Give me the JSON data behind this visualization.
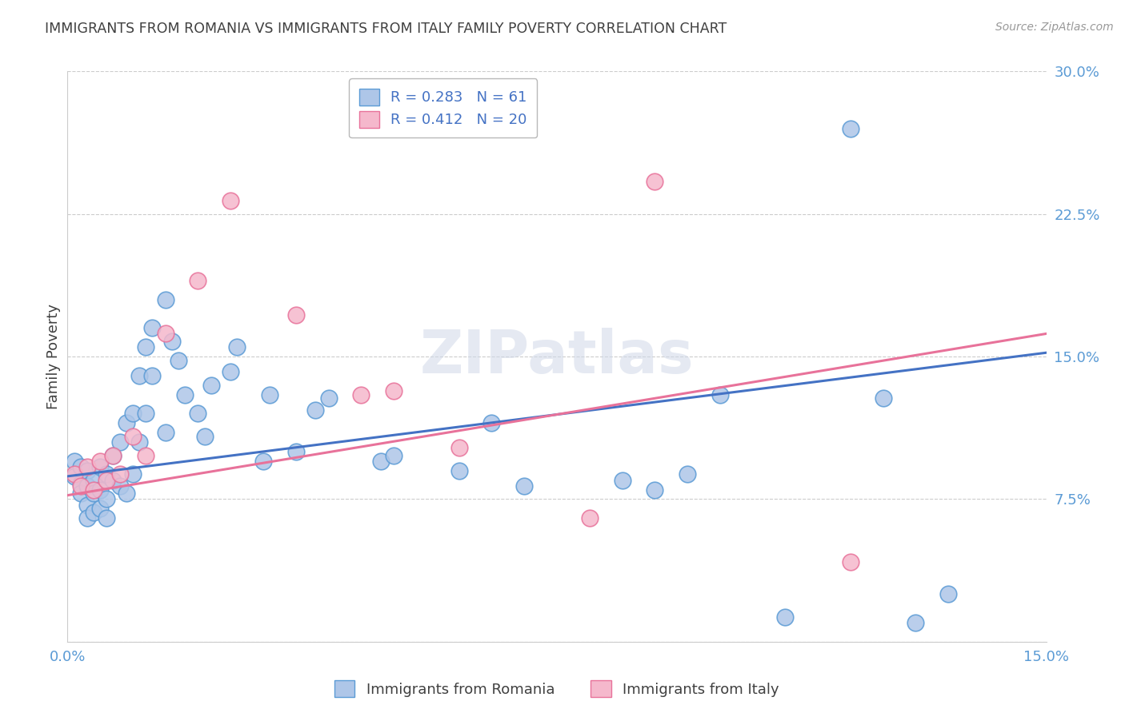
{
  "title": "IMMIGRANTS FROM ROMANIA VS IMMIGRANTS FROM ITALY FAMILY POVERTY CORRELATION CHART",
  "source": "Source: ZipAtlas.com",
  "ylabel": "Family Poverty",
  "xlim": [
    0.0,
    0.15
  ],
  "ylim": [
    0.0,
    0.3
  ],
  "xticks": [
    0.0,
    0.05,
    0.1,
    0.15
  ],
  "xtick_labels": [
    "0.0%",
    "",
    "",
    "15.0%"
  ],
  "yticks": [
    0.0,
    0.075,
    0.15,
    0.225,
    0.3
  ],
  "ytick_labels": [
    "",
    "7.5%",
    "15.0%",
    "22.5%",
    "30.0%"
  ],
  "romania_color": "#aec6e8",
  "romania_edge": "#5b9bd5",
  "italy_color": "#f5b8cc",
  "italy_edge": "#e8729a",
  "romania_line_color": "#4472c4",
  "italy_line_color": "#e8729a",
  "romania_R": 0.283,
  "romania_N": 61,
  "italy_R": 0.412,
  "italy_N": 20,
  "watermark": "ZIPatlas",
  "legend_romania_label": "Immigrants from Romania",
  "legend_italy_label": "Immigrants from Italy",
  "romania_scatter_x": [
    0.001,
    0.001,
    0.002,
    0.002,
    0.002,
    0.003,
    0.003,
    0.003,
    0.003,
    0.004,
    0.004,
    0.004,
    0.005,
    0.005,
    0.005,
    0.006,
    0.006,
    0.006,
    0.007,
    0.007,
    0.008,
    0.008,
    0.009,
    0.009,
    0.01,
    0.01,
    0.011,
    0.011,
    0.012,
    0.012,
    0.013,
    0.013,
    0.015,
    0.015,
    0.016,
    0.017,
    0.018,
    0.02,
    0.021,
    0.022,
    0.025,
    0.026,
    0.03,
    0.031,
    0.035,
    0.038,
    0.04,
    0.048,
    0.05,
    0.06,
    0.065,
    0.07,
    0.085,
    0.09,
    0.095,
    0.1,
    0.11,
    0.12,
    0.125,
    0.13,
    0.135
  ],
  "romania_scatter_y": [
    0.095,
    0.087,
    0.092,
    0.083,
    0.078,
    0.09,
    0.082,
    0.072,
    0.065,
    0.085,
    0.078,
    0.068,
    0.092,
    0.08,
    0.07,
    0.088,
    0.075,
    0.065,
    0.098,
    0.085,
    0.105,
    0.082,
    0.115,
    0.078,
    0.12,
    0.088,
    0.14,
    0.105,
    0.155,
    0.12,
    0.165,
    0.14,
    0.18,
    0.11,
    0.158,
    0.148,
    0.13,
    0.12,
    0.108,
    0.135,
    0.142,
    0.155,
    0.095,
    0.13,
    0.1,
    0.122,
    0.128,
    0.095,
    0.098,
    0.09,
    0.115,
    0.082,
    0.085,
    0.08,
    0.088,
    0.13,
    0.013,
    0.27,
    0.128,
    0.01,
    0.025
  ],
  "italy_scatter_x": [
    0.001,
    0.002,
    0.003,
    0.004,
    0.005,
    0.006,
    0.007,
    0.008,
    0.01,
    0.012,
    0.015,
    0.02,
    0.025,
    0.035,
    0.045,
    0.05,
    0.06,
    0.08,
    0.09,
    0.12
  ],
  "italy_scatter_y": [
    0.088,
    0.082,
    0.092,
    0.08,
    0.095,
    0.085,
    0.098,
    0.088,
    0.108,
    0.098,
    0.162,
    0.19,
    0.232,
    0.172,
    0.13,
    0.132,
    0.102,
    0.065,
    0.242,
    0.042
  ],
  "romania_line_x": [
    0.0,
    0.15
  ],
  "romania_line_y": [
    0.087,
    0.152
  ],
  "italy_line_x": [
    0.0,
    0.15
  ],
  "italy_line_y": [
    0.077,
    0.162
  ],
  "background_color": "#ffffff",
  "grid_color": "#cccccc",
  "tick_color": "#5b9bd5",
  "title_color": "#404040",
  "ylabel_color": "#404040"
}
